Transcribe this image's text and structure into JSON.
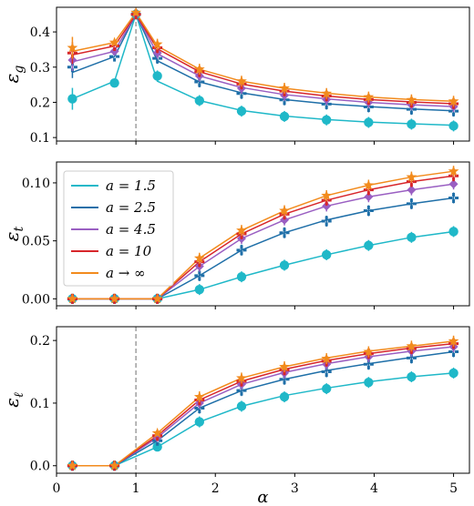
{
  "chart_data": [
    {
      "type": "line",
      "ylabel": "ε_g",
      "ylabel_main": "ε",
      "ylabel_sub": "g",
      "ylim": [
        0.09,
        0.47
      ],
      "yticks": [
        0.1,
        0.2,
        0.3,
        0.4
      ],
      "ytick_labels": [
        "0.1",
        "0.2",
        "0.3",
        "0.4"
      ],
      "xlim": [
        0,
        5.2
      ],
      "vline_x": 1.0,
      "show_x_tick_labels": false,
      "x": [
        0.2,
        0.73,
        1.0,
        1.27,
        1.8,
        2.33,
        2.87,
        3.4,
        3.93,
        4.47,
        5.0
      ],
      "series": [
        {
          "name": "a = 1.5",
          "color": "#1fb8c8",
          "marker": "circle",
          "values": [
            0.21,
            0.255,
            0.45,
            0.275,
            0.205,
            0.175,
            0.16,
            0.15,
            0.143,
            0.138,
            0.133
          ],
          "curve": [
            0.21,
            0.26,
            0.45,
            0.26,
            0.205,
            0.177,
            0.161,
            0.151,
            0.144,
            0.139,
            0.135
          ]
        },
        {
          "name": "a = 2.5",
          "color": "#1f6fa8",
          "marker": "plus",
          "values": [
            0.3,
            0.33,
            0.45,
            0.325,
            0.258,
            0.225,
            0.207,
            0.195,
            0.187,
            0.18,
            0.175
          ],
          "curve": [
            0.285,
            0.33,
            0.45,
            0.318,
            0.258,
            0.227,
            0.208,
            0.196,
            0.188,
            0.181,
            0.176
          ]
        },
        {
          "name": "a = 4.5",
          "color": "#9a5fc2",
          "marker": "diamond",
          "values": [
            0.32,
            0.345,
            0.45,
            0.34,
            0.275,
            0.24,
            0.22,
            0.208,
            0.2,
            0.193,
            0.188
          ],
          "curve": [
            0.315,
            0.345,
            0.45,
            0.338,
            0.275,
            0.242,
            0.222,
            0.21,
            0.2,
            0.193,
            0.188
          ]
        },
        {
          "name": "a = 10",
          "color": "#d7262b",
          "marker": "plus",
          "values": [
            0.34,
            0.36,
            0.45,
            0.355,
            0.287,
            0.252,
            0.232,
            0.218,
            0.208,
            0.2,
            0.196
          ],
          "curve": [
            0.335,
            0.36,
            0.45,
            0.352,
            0.287,
            0.252,
            0.232,
            0.218,
            0.208,
            0.201,
            0.196
          ]
        },
        {
          "name": "a → ∞",
          "color": "#f28b1d",
          "marker": "star",
          "values": [
            0.355,
            0.37,
            0.455,
            0.365,
            0.294,
            0.26,
            0.24,
            0.225,
            0.215,
            0.207,
            0.203
          ],
          "curve": [
            0.345,
            0.37,
            0.455,
            0.36,
            0.294,
            0.26,
            0.24,
            0.226,
            0.215,
            0.208,
            0.203
          ]
        }
      ]
    },
    {
      "type": "line",
      "ylabel": "ε_t",
      "ylabel_main": "ε",
      "ylabel_sub": "t",
      "ylim": [
        -0.006,
        0.118
      ],
      "yticks": [
        0.0,
        0.05,
        0.1
      ],
      "ytick_labels": [
        "0.00",
        "0.05",
        "0.10"
      ],
      "xlim": [
        0,
        5.2
      ],
      "vline_x": null,
      "show_x_tick_labels": false,
      "x": [
        0.2,
        0.73,
        1.27,
        1.8,
        2.33,
        2.87,
        3.4,
        3.93,
        4.47,
        5.0
      ],
      "series": [
        {
          "name": "a = 1.5",
          "color": "#1fb8c8",
          "marker": "circle",
          "values": [
            0.0,
            0.0,
            0.0,
            0.008,
            0.019,
            0.029,
            0.038,
            0.046,
            0.053,
            0.058
          ],
          "curve": [
            0.0,
            0.0,
            0.0,
            0.008,
            0.019,
            0.029,
            0.038,
            0.046,
            0.053,
            0.058
          ]
        },
        {
          "name": "a = 2.5",
          "color": "#1f6fa8",
          "marker": "plus",
          "values": [
            0.0,
            0.0,
            0.0,
            0.02,
            0.042,
            0.057,
            0.067,
            0.076,
            0.082,
            0.087
          ],
          "curve": [
            0.0,
            0.0,
            0.0,
            0.02,
            0.042,
            0.057,
            0.068,
            0.076,
            0.082,
            0.087
          ]
        },
        {
          "name": "a = 4.5",
          "color": "#9a5fc2",
          "marker": "diamond",
          "values": [
            0.0,
            0.0,
            0.0,
            0.028,
            0.052,
            0.068,
            0.08,
            0.088,
            0.094,
            0.099
          ],
          "curve": [
            0.0,
            0.0,
            0.0,
            0.028,
            0.052,
            0.068,
            0.08,
            0.088,
            0.094,
            0.099
          ]
        },
        {
          "name": "a = 10",
          "color": "#d7262b",
          "marker": "plus",
          "values": [
            0.0,
            0.0,
            0.0,
            0.032,
            0.056,
            0.073,
            0.085,
            0.094,
            0.101,
            0.106
          ],
          "curve": [
            0.0,
            0.0,
            0.0,
            0.032,
            0.056,
            0.073,
            0.085,
            0.094,
            0.101,
            0.106
          ]
        },
        {
          "name": "a → ∞",
          "color": "#f28b1d",
          "marker": "star",
          "values": [
            0.0,
            0.0,
            0.0,
            0.035,
            0.059,
            0.076,
            0.089,
            0.098,
            0.105,
            0.11
          ],
          "curve": [
            0.0,
            0.0,
            0.0,
            0.035,
            0.059,
            0.076,
            0.089,
            0.098,
            0.105,
            0.11
          ]
        }
      ]
    },
    {
      "type": "line",
      "ylabel": "ε_ℓ",
      "ylabel_main": "ε",
      "ylabel_sub": "ℓ",
      "ylim": [
        -0.012,
        0.222
      ],
      "yticks": [
        0.0,
        0.1,
        0.2
      ],
      "ytick_labels": [
        "0.0",
        "0.1",
        "0.2"
      ],
      "xlim": [
        0,
        5.2
      ],
      "vline_x": 1.0,
      "show_x_tick_labels": true,
      "xticks": [
        0,
        1,
        2,
        3,
        4,
        5
      ],
      "xtick_labels": [
        "0",
        "1",
        "2",
        "3",
        "4",
        "5"
      ],
      "xlabel": "α",
      "x": [
        0.2,
        0.73,
        1.27,
        1.8,
        2.33,
        2.87,
        3.4,
        3.93,
        4.47,
        5.0
      ],
      "series": [
        {
          "name": "a = 1.5",
          "color": "#1fb8c8",
          "marker": "circle",
          "values": [
            0.0,
            0.0,
            0.03,
            0.07,
            0.095,
            0.11,
            0.123,
            0.133,
            0.142,
            0.148
          ],
          "curve": [
            0.0,
            0.0,
            0.03,
            0.07,
            0.095,
            0.112,
            0.124,
            0.134,
            0.142,
            0.148
          ]
        },
        {
          "name": "a = 2.5",
          "color": "#1f6fa8",
          "marker": "plus",
          "values": [
            0.0,
            0.0,
            0.04,
            0.092,
            0.12,
            0.138,
            0.15,
            0.162,
            0.172,
            0.182
          ],
          "curve": [
            0.0,
            0.0,
            0.04,
            0.092,
            0.12,
            0.138,
            0.152,
            0.163,
            0.173,
            0.182
          ]
        },
        {
          "name": "a = 4.5",
          "color": "#9a5fc2",
          "marker": "diamond",
          "values": [
            0.0,
            0.0,
            0.045,
            0.1,
            0.13,
            0.148,
            0.162,
            0.174,
            0.183,
            0.19
          ],
          "curve": [
            0.0,
            0.0,
            0.045,
            0.1,
            0.13,
            0.149,
            0.163,
            0.174,
            0.183,
            0.19
          ]
        },
        {
          "name": "a = 10",
          "color": "#d7262b",
          "marker": "plus",
          "values": [
            0.0,
            0.0,
            0.048,
            0.105,
            0.135,
            0.153,
            0.167,
            0.179,
            0.187,
            0.195
          ],
          "curve": [
            0.0,
            0.0,
            0.048,
            0.105,
            0.135,
            0.154,
            0.168,
            0.179,
            0.188,
            0.195
          ]
        },
        {
          "name": "a → ∞",
          "color": "#f28b1d",
          "marker": "star",
          "values": [
            0.0,
            0.0,
            0.052,
            0.11,
            0.14,
            0.158,
            0.171,
            0.182,
            0.191,
            0.199
          ],
          "curve": [
            0.0,
            0.0,
            0.052,
            0.11,
            0.14,
            0.158,
            0.172,
            0.183,
            0.191,
            0.199
          ]
        }
      ]
    }
  ],
  "legend": {
    "placement": "upper-left of middle panel",
    "entries": [
      {
        "label": "a = 1.5",
        "color": "#1fb8c8"
      },
      {
        "label": "a = 2.5",
        "color": "#1f6fa8"
      },
      {
        "label": "a = 4.5",
        "color": "#9a5fc2"
      },
      {
        "label": "a = 10",
        "color": "#d7262b"
      },
      {
        "label": "a → ∞",
        "color": "#f28b1d"
      }
    ]
  },
  "vline_color": "#888888"
}
